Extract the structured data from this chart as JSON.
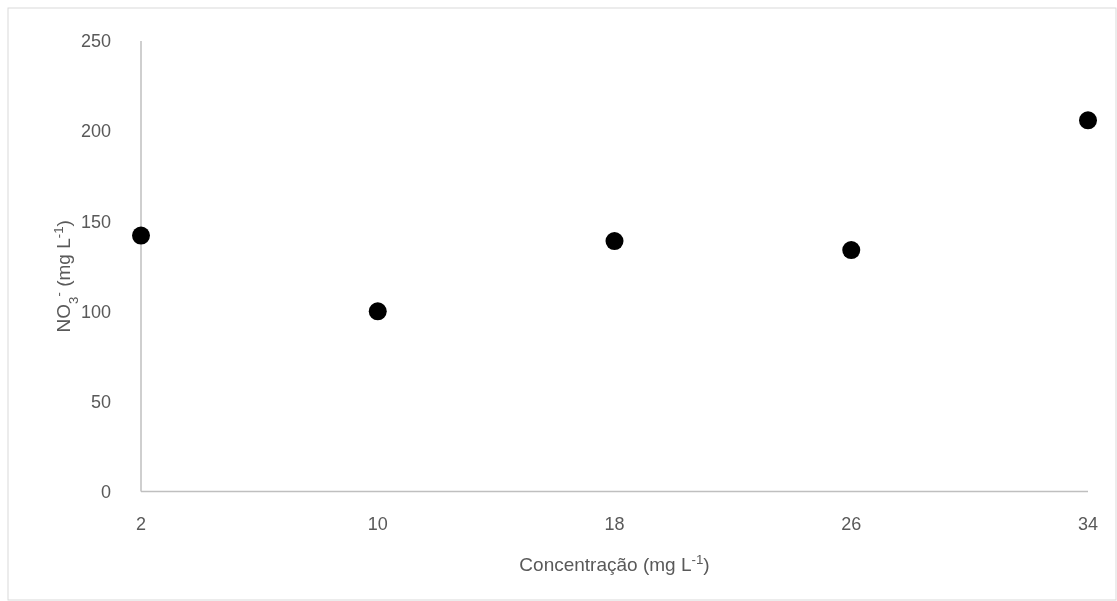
{
  "chart_data": {
    "type": "scatter",
    "xlabel": "Concentração (mg L$^{-1}$)",
    "ylabel": "NO$_{3}$$^{-}$ (mg L$^{-1}$)",
    "x": [
      2,
      10,
      18,
      26,
      34
    ],
    "values": [
      142,
      100,
      139,
      134,
      206
    ],
    "color": "#000000",
    "marker": "circle",
    "xlim": [
      2,
      34
    ],
    "xticks": [
      2,
      10,
      18,
      26,
      34
    ],
    "ylim": [
      0,
      250
    ],
    "yticks": [
      0,
      50,
      100,
      150,
      200,
      250
    ]
  }
}
